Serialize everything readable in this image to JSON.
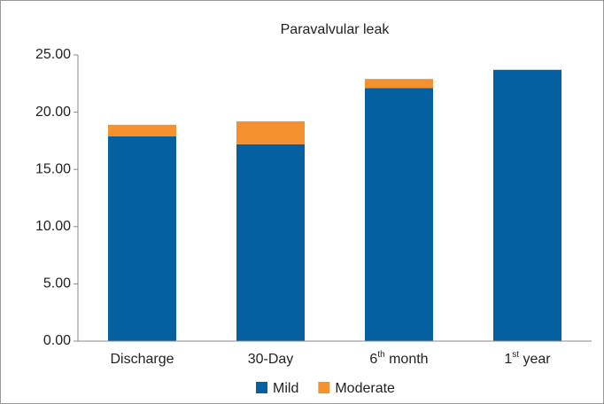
{
  "chart_data": {
    "type": "stacked_bar",
    "title": "Paravalvular leak",
    "categories": [
      "Discharge",
      "30-Day",
      "6th month",
      "1st year"
    ],
    "series": [
      {
        "name": "Mild",
        "color": "#0460a0",
        "values": [
          17.9,
          17.2,
          22.1,
          23.7
        ]
      },
      {
        "name": "Moderate",
        "color": "#f5922f",
        "values": [
          1.0,
          2.0,
          0.8,
          0
        ]
      }
    ],
    "ylim": [
      0,
      25
    ],
    "yticks": [
      {
        "value": 0,
        "label": "0.00"
      },
      {
        "value": 5,
        "label": "5.00"
      },
      {
        "value": 10,
        "label": "10.00"
      },
      {
        "value": 15,
        "label": "15.00"
      },
      {
        "value": 20,
        "label": "20.00"
      },
      {
        "value": 25,
        "label": "25.00"
      }
    ],
    "grid": false,
    "legend": "bottom"
  }
}
